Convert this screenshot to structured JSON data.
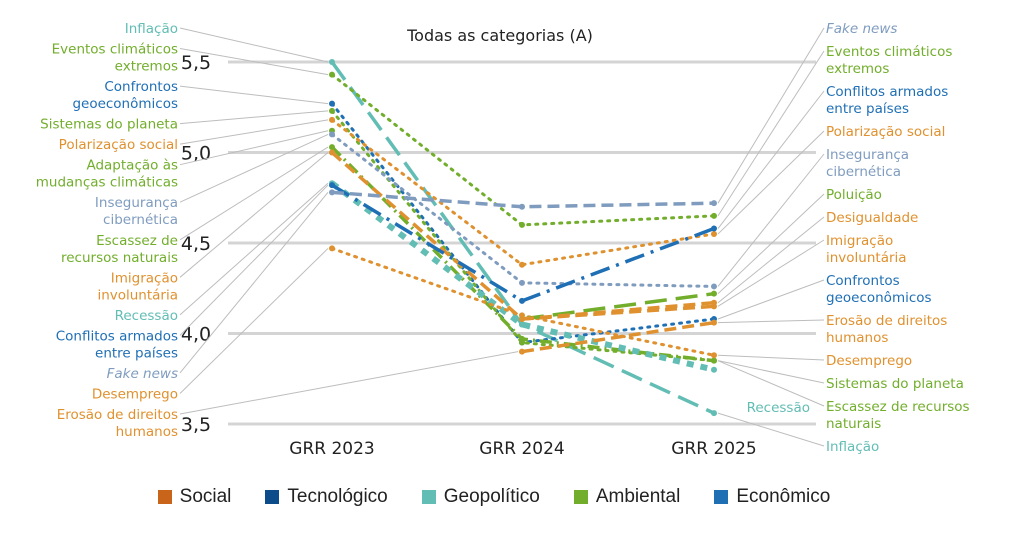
{
  "chart_data": {
    "type": "line",
    "title": "Todas as categorias (A)",
    "xlabel": "",
    "ylabel": "",
    "x": [
      "GRR 2023",
      "GRR 2024",
      "GRR 2025"
    ],
    "ylim": [
      3.5,
      5.5
    ],
    "yticks": [
      "3,5",
      "4,0",
      "4,5",
      "5,0",
      "5,5"
    ],
    "ytick_values": [
      3.5,
      4.0,
      4.5,
      5.0,
      5.5
    ],
    "grid": true,
    "legend_position": "bottom",
    "categories_legend": [
      {
        "name": "Social",
        "color": "#C8651B"
      },
      {
        "name": "Tecnológico",
        "color": "#0D4C8B"
      },
      {
        "name": "Geopolítico",
        "color": "#62BDB4"
      },
      {
        "name": "Ambiental",
        "color": "#72AE2C"
      },
      {
        "name": "Econômico",
        "color": "#1F6FB5"
      }
    ],
    "series": [
      {
        "name": "Inflação",
        "category": "Econômico",
        "color": "#62BDB4",
        "style": "longdash",
        "values": [
          5.5,
          4.05,
          3.56
        ]
      },
      {
        "name": "Eventos climáticos extremos",
        "category": "Ambiental",
        "color": "#72AE2C",
        "style": "dotted",
        "values": [
          5.43,
          4.6,
          4.65
        ]
      },
      {
        "name": "Confrontos geoeconômicos",
        "category": "Geopolítico",
        "color": "#1F6FB5",
        "style": "dotted",
        "values": [
          5.27,
          3.95,
          4.08
        ]
      },
      {
        "name": "Sistemas do planeta",
        "category": "Ambiental",
        "color": "#72AE2C",
        "style": "dotted",
        "values": [
          5.23,
          3.95,
          3.85
        ]
      },
      {
        "name": "Polarização social",
        "category": "Social",
        "color": "#E0912F",
        "style": "dotted",
        "values": [
          5.18,
          4.38,
          4.55
        ]
      },
      {
        "name": "Adaptação às mudanças climáticas",
        "category": "Ambiental",
        "color": "#72AE2C",
        "style": "dot",
        "values": [
          5.12,
          null,
          null
        ]
      },
      {
        "name": "Insegurança cibernética",
        "category": "Tecnológico",
        "color": "#7F9CBF",
        "style": "dotted",
        "values": [
          5.1,
          4.28,
          4.26
        ]
      },
      {
        "name": "Escassez de recursos naturais",
        "category": "Ambiental",
        "color": "#72AE2C",
        "style": "dashdot",
        "values": [
          5.03,
          3.97,
          3.85
        ]
      },
      {
        "name": "Imigração involuntária",
        "category": "Social",
        "color": "#E0912F",
        "style": "dash",
        "values": [
          5.0,
          4.08,
          4.15
        ]
      },
      {
        "name": "Recessão",
        "category": "Econômico",
        "color": "#62BDB4",
        "style": "squaredot",
        "values": [
          4.83,
          4.05,
          3.8
        ]
      },
      {
        "name": "Conflitos armados entre países",
        "category": "Geopolítico",
        "color": "#1F6FB5",
        "style": "dashdotlong",
        "values": [
          4.82,
          4.18,
          4.58
        ]
      },
      {
        "name": "Fake news",
        "category": "Tecnológico",
        "color": "#7F9CBF",
        "style": "dash",
        "values": [
          4.78,
          4.7,
          4.72
        ]
      },
      {
        "name": "Desemprego",
        "category": "Econômico",
        "color": "#E0912F",
        "style": "dotted",
        "values": [
          4.47,
          4.1,
          3.88
        ]
      },
      {
        "name": "Erosão de direitos humanos",
        "category": "Social",
        "color": "#E0912F",
        "style": "dash",
        "values": [
          null,
          3.9,
          4.06
        ]
      },
      {
        "name": "Poluição",
        "category": "Ambiental",
        "color": "#72AE2C",
        "style": "longdash",
        "values": [
          null,
          4.08,
          4.22
        ]
      },
      {
        "name": "Desigualdade",
        "category": "Social",
        "color": "#E0912F",
        "style": "dash",
        "values": [
          null,
          4.08,
          4.17
        ]
      }
    ],
    "left_labels": [
      {
        "text": [
          "Inflação"
        ],
        "color": "#62BDB4",
        "italic": false
      },
      {
        "text": [
          "Eventos climáticos",
          "extremos"
        ],
        "color": "#72AE2C",
        "italic": false
      },
      {
        "text": [
          "Confrontos",
          "geoeconômicos"
        ],
        "color": "#1F6FB5",
        "italic": false
      },
      {
        "text": [
          "Sistemas do planeta"
        ],
        "color": "#72AE2C",
        "italic": false
      },
      {
        "text": [
          "Polarização social"
        ],
        "color": "#E0912F",
        "italic": false
      },
      {
        "text": [
          "Adaptação às",
          "mudanças climáticas"
        ],
        "color": "#72AE2C",
        "italic": false
      },
      {
        "text": [
          "Insegurança",
          "cibernética"
        ],
        "color": "#7F9CBF",
        "italic": false
      },
      {
        "text": [
          "Escassez de",
          "recursos naturais"
        ],
        "color": "#72AE2C",
        "italic": false
      },
      {
        "text": [
          "Imigração",
          "involuntária"
        ],
        "color": "#E0912F",
        "italic": false
      },
      {
        "text": [
          "Recessão"
        ],
        "color": "#62BDB4",
        "italic": false
      },
      {
        "text": [
          "Conflitos armados",
          "entre países"
        ],
        "color": "#1F6FB5",
        "italic": false
      },
      {
        "text": [
          "Fake news"
        ],
        "color": "#7F9CBF",
        "italic": true
      },
      {
        "text": [
          "Desemprego"
        ],
        "color": "#E0912F",
        "italic": false
      },
      {
        "text": [
          "Erosão de direitos",
          "humanos"
        ],
        "color": "#E0912F",
        "italic": false
      }
    ],
    "right_labels": [
      {
        "text": [
          "Fake news"
        ],
        "color": "#7F9CBF",
        "italic": true
      },
      {
        "text": [
          "Eventos climáticos",
          "extremos"
        ],
        "color": "#72AE2C",
        "italic": false
      },
      {
        "text": [
          "Conflitos armados",
          "entre países"
        ],
        "color": "#1F6FB5",
        "italic": false
      },
      {
        "text": [
          "Polarização social"
        ],
        "color": "#E0912F",
        "italic": false
      },
      {
        "text": [
          "Insegurança",
          "cibernética"
        ],
        "color": "#7F9CBF",
        "italic": false
      },
      {
        "text": [
          "Poluição"
        ],
        "color": "#72AE2C",
        "italic": false
      },
      {
        "text": [
          "Desigualdade"
        ],
        "color": "#E0912F",
        "italic": false
      },
      {
        "text": [
          "Imigração",
          "involuntária"
        ],
        "color": "#E0912F",
        "italic": false
      },
      {
        "text": [
          "Confrontos",
          "geoeconômicos"
        ],
        "color": "#1F6FB5",
        "italic": false
      },
      {
        "text": [
          "Erosão de direitos",
          "humanos"
        ],
        "color": "#E0912F",
        "italic": false
      },
      {
        "text": [
          "Desemprego"
        ],
        "color": "#E0912F",
        "italic": false
      },
      {
        "text": [
          "Sistemas do planeta"
        ],
        "color": "#72AE2C",
        "italic": false
      },
      {
        "text": [
          "Escassez de recursos",
          "naturais"
        ],
        "color": "#72AE2C",
        "italic": false
      },
      {
        "text": [
          "Inflação"
        ],
        "color": "#62BDB4",
        "italic": false
      }
    ],
    "inline_labels": [
      {
        "text": "Recessão",
        "color": "#62BDB4"
      }
    ]
  }
}
